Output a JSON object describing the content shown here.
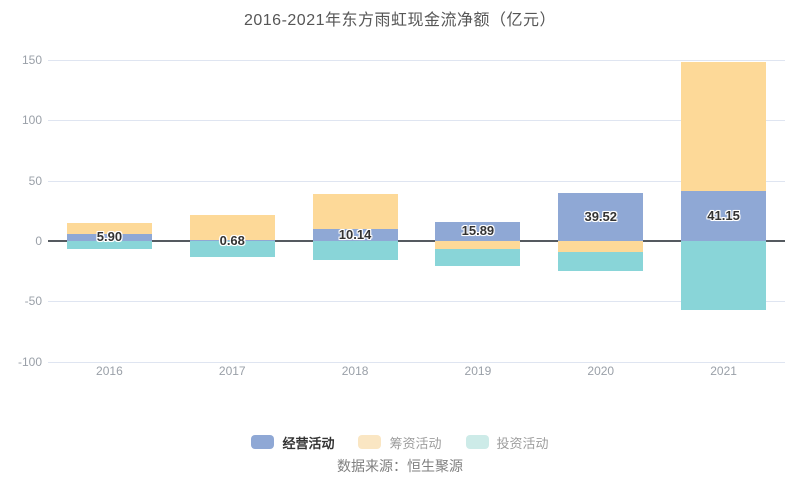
{
  "title": "2016-2021年东方雨虹现金流净额（亿元）",
  "source": "数据来源：恒生聚源",
  "chart_data": {
    "type": "bar",
    "stacked": true,
    "title": "2016-2021年东方雨虹现金流净额（亿元）",
    "categories": [
      "2016",
      "2017",
      "2018",
      "2019",
      "2020",
      "2021"
    ],
    "series": [
      {
        "name": "经营活动",
        "key": "operating",
        "color": "#8fa8d5",
        "values": [
          5.9,
          0.68,
          10.14,
          15.89,
          39.52,
          41.15
        ],
        "labels": [
          "5.90",
          "0.68",
          "10.14",
          "15.89",
          "39.52",
          "41.15"
        ]
      },
      {
        "name": "筹资活动",
        "key": "financing",
        "color": "#fdd998",
        "values": [
          8.8,
          20.9,
          28.9,
          -6.9,
          -9.0,
          106.9
        ],
        "labels": []
      },
      {
        "name": "投资活动",
        "key": "investing",
        "color": "#89d5d8",
        "values": [
          -6.6,
          -13.5,
          -15.7,
          -13.5,
          -15.9,
          -56.9
        ],
        "labels": []
      }
    ],
    "xlabel": "",
    "ylabel": "",
    "ylim": [
      -100,
      150
    ],
    "yticks": [
      150,
      100,
      50,
      0,
      -50,
      -100
    ],
    "grid": true,
    "legend_position": "bottom"
  },
  "legend": {
    "items": [
      {
        "label": "经营活动",
        "key": "operating",
        "swatch": "#8fa8d5",
        "emphasis": true
      },
      {
        "label": "筹资活动",
        "key": "financing",
        "swatch": "#fae6c3",
        "emphasis": false
      },
      {
        "label": "投资活动",
        "key": "investing",
        "swatch": "#cdebe8",
        "emphasis": false
      }
    ]
  },
  "colors": {
    "grid": "#dfe5f1",
    "zero_axis": "#555a60",
    "axis_text": "#9aa0a8",
    "value_label_text": "#333333",
    "title_text": "#565656",
    "source_text": "#7f7f7f"
  }
}
